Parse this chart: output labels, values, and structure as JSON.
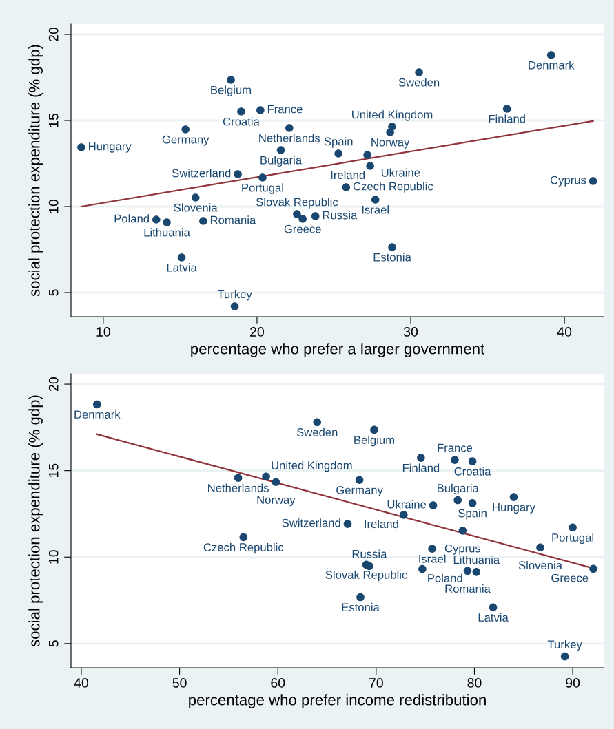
{
  "chart_data": [
    {
      "type": "scatter",
      "xlabel": "percentage who prefer a larger government",
      "ylabel": "social protection expenditure (% gdp)",
      "xlim": [
        7.9,
        42.55
      ],
      "ylim": [
        3.6,
        20.6
      ],
      "xticks": [
        10,
        20,
        30,
        40
      ],
      "yticks": [
        5,
        10,
        15,
        20
      ],
      "grid": "y",
      "series": [
        {
          "color": "#1a476f",
          "marker": "circle",
          "x": [
            8.57,
            18.3,
            18.97,
            20.22,
            15.35,
            22.1,
            21.55,
            25.3,
            18.75,
            20.36,
            16.0,
            13.45,
            14.13,
            16.5,
            15.1,
            18.55,
            22.6,
            23.8,
            22.97,
            30.54,
            39.13,
            36.26,
            28.79,
            28.66,
            27.18,
            27.36,
            25.8,
            27.7,
            28.79,
            41.86
          ],
          "values": [
            13.44,
            17.36,
            15.52,
            15.6,
            14.48,
            14.56,
            13.28,
            13.08,
            11.88,
            11.68,
            10.52,
            9.24,
            9.08,
            9.16,
            7.04,
            4.2,
            9.56,
            9.44,
            9.28,
            17.8,
            18.8,
            15.68,
            14.64,
            14.32,
            13.0,
            12.36,
            11.12,
            10.4,
            7.64,
            11.48
          ]
        },
        {
          "type": "line",
          "color": "#90353b",
          "x": [
            8.57,
            41.86
          ],
          "values": [
            10.0,
            14.97
          ]
        }
      ],
      "annotations": [
        {
          "text": "Hungary",
          "x": 8.57,
          "y": 13.44
        },
        {
          "text": "Belgium",
          "x": 18.3,
          "y": 17.36
        },
        {
          "text": "Croatia",
          "x": 18.97,
          "y": 15.52
        },
        {
          "text": "France",
          "x": 20.22,
          "y": 15.6
        },
        {
          "text": "Germany",
          "x": 15.35,
          "y": 14.48
        },
        {
          "text": "Netherlands",
          "x": 22.1,
          "y": 14.56
        },
        {
          "text": "Bulgaria",
          "x": 21.55,
          "y": 13.28
        },
        {
          "text": "Spain",
          "x": 25.3,
          "y": 13.08
        },
        {
          "text": "Switzerland",
          "x": 18.75,
          "y": 11.88
        },
        {
          "text": "Portugal",
          "x": 20.36,
          "y": 11.68
        },
        {
          "text": "Slovenia",
          "x": 16.0,
          "y": 10.52
        },
        {
          "text": "Poland",
          "x": 13.45,
          "y": 9.24
        },
        {
          "text": "Lithuania",
          "x": 14.13,
          "y": 9.08
        },
        {
          "text": "Romania",
          "x": 16.5,
          "y": 9.16
        },
        {
          "text": "Latvia",
          "x": 15.1,
          "y": 7.04
        },
        {
          "text": "Turkey",
          "x": 18.55,
          "y": 4.2
        },
        {
          "text": "Slovak Republic",
          "x": 22.6,
          "y": 9.56
        },
        {
          "text": "Russia",
          "x": 23.8,
          "y": 9.44
        },
        {
          "text": "Greece",
          "x": 22.97,
          "y": 9.28
        },
        {
          "text": "Sweden",
          "x": 30.54,
          "y": 17.8
        },
        {
          "text": "Denmark",
          "x": 39.13,
          "y": 18.8
        },
        {
          "text": "Finland",
          "x": 36.26,
          "y": 15.68
        },
        {
          "text": "United Kingdom",
          "x": 28.79,
          "y": 14.64
        },
        {
          "text": "Norway",
          "x": 28.66,
          "y": 14.32
        },
        {
          "text": "Ukraine",
          "x": 27.18,
          "y": 13.0
        },
        {
          "text": "Ireland",
          "x": 27.36,
          "y": 12.36
        },
        {
          "text": "Czech Republic",
          "x": 25.8,
          "y": 11.12
        },
        {
          "text": "Israel",
          "x": 27.7,
          "y": 10.4
        },
        {
          "text": "Estonia",
          "x": 28.79,
          "y": 7.64
        },
        {
          "text": "Cyprus",
          "x": 41.86,
          "y": 11.48
        }
      ]
    },
    {
      "type": "scatter",
      "xlabel": "percentage who prefer income redistribution",
      "ylabel": "social protection expenditure (% gdp)",
      "xlim": [
        38.95,
        93.15
      ],
      "ylim": [
        3.6,
        20.6
      ],
      "xticks": [
        40,
        50,
        60,
        70,
        80,
        90
      ],
      "yticks": [
        5,
        10,
        15,
        20
      ],
      "grid": "y",
      "series": [
        {
          "color": "#1a476f",
          "marker": "circle",
          "x": [
            41.6,
            64.0,
            55.96,
            58.8,
            59.8,
            56.5,
            69.8,
            74.56,
            78.0,
            79.8,
            68.3,
            84.0,
            78.3,
            79.8,
            75.8,
            72.8,
            67.1,
            78.8,
            75.7,
            90.0,
            86.7,
            92.1,
            81.9,
            89.2,
            68.4,
            69.0,
            69.3,
            74.7,
            79.3,
            80.2
          ],
          "values": [
            18.83,
            17.8,
            14.58,
            14.66,
            14.34,
            11.15,
            17.36,
            15.74,
            15.62,
            15.54,
            14.46,
            13.47,
            13.29,
            13.12,
            12.99,
            12.44,
            11.92,
            11.53,
            10.48,
            11.71,
            10.55,
            9.32,
            7.09,
            4.25,
            7.68,
            9.56,
            9.48,
            9.31,
            9.2,
            9.14
          ]
        },
        {
          "type": "line",
          "color": "#90353b",
          "x": [
            41.6,
            92.1
          ],
          "values": [
            17.1,
            9.35
          ]
        }
      ],
      "annotations": [
        {
          "text": "Denmark",
          "x": 41.6,
          "y": 18.83
        },
        {
          "text": "Sweden",
          "x": 64.0,
          "y": 17.8
        },
        {
          "text": "Netherlands",
          "x": 55.96,
          "y": 14.58
        },
        {
          "text": "United Kingdom",
          "x": 58.8,
          "y": 14.66
        },
        {
          "text": "Norway",
          "x": 59.8,
          "y": 14.34
        },
        {
          "text": "Czech Republic",
          "x": 56.5,
          "y": 11.15
        },
        {
          "text": "Belgium",
          "x": 69.8,
          "y": 17.36
        },
        {
          "text": "Finland",
          "x": 74.56,
          "y": 15.74
        },
        {
          "text": "France",
          "x": 78.0,
          "y": 15.62
        },
        {
          "text": "Croatia",
          "x": 79.8,
          "y": 15.54
        },
        {
          "text": "Germany",
          "x": 68.3,
          "y": 14.46
        },
        {
          "text": "Hungary",
          "x": 84.0,
          "y": 13.47
        },
        {
          "text": "Bulgaria",
          "x": 78.3,
          "y": 13.29
        },
        {
          "text": "Spain",
          "x": 79.8,
          "y": 13.12
        },
        {
          "text": "Ukraine",
          "x": 75.8,
          "y": 12.99
        },
        {
          "text": "Ireland",
          "x": 72.8,
          "y": 12.44
        },
        {
          "text": "Switzerland",
          "x": 67.1,
          "y": 11.92
        },
        {
          "text": "Cyprus",
          "x": 78.8,
          "y": 11.53
        },
        {
          "text": "Israel",
          "x": 75.7,
          "y": 10.48
        },
        {
          "text": "Portugal",
          "x": 90.0,
          "y": 11.71
        },
        {
          "text": "Slovenia",
          "x": 86.7,
          "y": 10.55
        },
        {
          "text": "Greece",
          "x": 92.1,
          "y": 9.32
        },
        {
          "text": "Latvia",
          "x": 81.9,
          "y": 7.09
        },
        {
          "text": "Turkey",
          "x": 89.2,
          "y": 4.25
        },
        {
          "text": "Estonia",
          "x": 68.4,
          "y": 7.68
        },
        {
          "text": "Slovak Republic",
          "x": 69.0,
          "y": 9.56
        },
        {
          "text": "Russia",
          "x": 69.3,
          "y": 9.48
        },
        {
          "text": "Poland",
          "x": 74.7,
          "y": 9.31
        },
        {
          "text": "Romania",
          "x": 79.3,
          "y": 9.2
        },
        {
          "text": "Lithuania",
          "x": 80.2,
          "y": 9.14
        }
      ]
    }
  ]
}
